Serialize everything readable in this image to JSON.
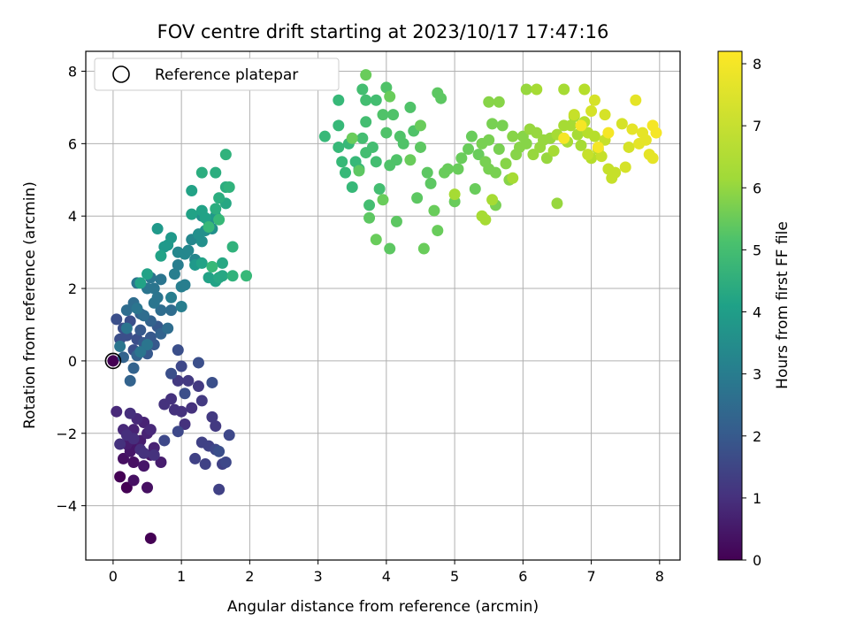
{
  "chart_data": {
    "type": "scatter",
    "title": "FOV centre drift starting at 2023/10/17 17:47:16",
    "xlabel": "Angular distance from reference (arcmin)",
    "ylabel": "Rotation from reference (arcmin)",
    "xlim": [
      -0.4,
      8.3
    ],
    "ylim": [
      -5.5,
      8.55
    ],
    "xticks": [
      "0",
      "1",
      "2",
      "3",
      "4",
      "5",
      "6",
      "7",
      "8"
    ],
    "yticks": [
      "−4",
      "−2",
      "0",
      "2",
      "4",
      "6",
      "8"
    ],
    "grid": true,
    "legend": {
      "label": "Reference platepar",
      "location": "top-left"
    },
    "reference_point": {
      "x": 0,
      "y": 0
    },
    "colorbar": {
      "label": "Hours from first FF file",
      "colormap": "viridis",
      "range": [
        0,
        8.2
      ],
      "ticks": [
        "0",
        "1",
        "2",
        "3",
        "4",
        "5",
        "6",
        "7",
        "8"
      ]
    },
    "series": [
      {
        "c": [
          0,
          0.35,
          0.5,
          0.65,
          0.8,
          0.95,
          1.1,
          1.2
        ],
        "points": [
          [
            0,
            0
          ],
          [
            0.55,
            -4.9
          ],
          [
            0.1,
            -3.2
          ],
          [
            0.2,
            -3.5
          ],
          [
            0.3,
            -3.3
          ],
          [
            0.5,
            -3.5
          ],
          [
            0.15,
            -2.7
          ],
          [
            0.3,
            -2.8
          ],
          [
            0.45,
            -2.9
          ],
          [
            0.25,
            -2.5
          ],
          [
            0.35,
            -2.3
          ],
          [
            0.55,
            -2.6
          ],
          [
            0.7,
            -2.8
          ],
          [
            0.2,
            -2.3
          ],
          [
            0.4,
            -2.2
          ],
          [
            0.6,
            -2.4
          ],
          [
            0.5,
            -2.0
          ],
          [
            0.3,
            -1.9
          ],
          [
            0.45,
            -1.7
          ],
          [
            0.15,
            -1.9
          ],
          [
            0.35,
            -1.6
          ],
          [
            0.55,
            -1.9
          ],
          [
            0.05,
            -1.4
          ],
          [
            0.25,
            -1.45
          ],
          [
            0.4,
            -2.45
          ],
          [
            0.3,
            -2.15
          ],
          [
            0.2,
            -2.05
          ],
          [
            0.6,
            -2.6
          ],
          [
            0.1,
            -2.3
          ],
          [
            0.45,
            -2.55
          ]
        ]
      },
      {
        "c": [
          1.2,
          1.4,
          1.6,
          1.8,
          2.0
        ],
        "points": [
          [
            0.75,
            -1.2
          ],
          [
            0.9,
            -1.35
          ],
          [
            1.0,
            -1.4
          ],
          [
            1.05,
            -1.75
          ],
          [
            1.15,
            -1.3
          ],
          [
            0.85,
            -1.05
          ],
          [
            0.95,
            -0.55
          ],
          [
            1.1,
            -0.55
          ],
          [
            1.25,
            -0.7
          ],
          [
            1.3,
            -1.1
          ],
          [
            1.45,
            -1.55
          ],
          [
            1.5,
            -1.8
          ],
          [
            1.2,
            -2.7
          ],
          [
            1.3,
            -2.25
          ],
          [
            1.4,
            -2.35
          ],
          [
            1.35,
            -2.85
          ],
          [
            1.55,
            -3.55
          ],
          [
            1.6,
            -2.85
          ],
          [
            1.65,
            -2.8
          ],
          [
            1.7,
            -2.05
          ],
          [
            1.5,
            -2.45
          ],
          [
            0.95,
            -1.95
          ],
          [
            0.75,
            -2.2
          ],
          [
            1.0,
            -0.15
          ],
          [
            1.25,
            -0.05
          ],
          [
            0.85,
            -0.35
          ],
          [
            0.95,
            0.3
          ],
          [
            1.45,
            -0.6
          ],
          [
            1.55,
            -2.5
          ],
          [
            1.05,
            -0.9
          ]
        ]
      },
      {
        "c": [
          2.0,
          2.3,
          2.6,
          2.9,
          3.2
        ],
        "points": [
          [
            0.05,
            1.15
          ],
          [
            0.1,
            0.6
          ],
          [
            0.15,
            0.9
          ],
          [
            0.2,
            0.7
          ],
          [
            0.25,
            1.1
          ],
          [
            0.3,
            0.3
          ],
          [
            0.35,
            0.6
          ],
          [
            0.4,
            0.85
          ],
          [
            0.45,
            0.5
          ],
          [
            0.5,
            0.2
          ],
          [
            0.55,
            0.65
          ],
          [
            0.6,
            0.45
          ],
          [
            0.65,
            0.95
          ],
          [
            0.7,
            0.75
          ],
          [
            0.3,
            -0.2
          ],
          [
            0.25,
            -0.55
          ],
          [
            0.35,
            0.15
          ],
          [
            0.15,
            0.1
          ],
          [
            0.4,
            1.3
          ],
          [
            0.55,
            1.1
          ],
          [
            0.2,
            1.4
          ],
          [
            0.3,
            1.6
          ],
          [
            0.45,
            1.25
          ],
          [
            0.8,
            0.9
          ],
          [
            0.85,
            1.4
          ],
          [
            0.7,
            1.4
          ],
          [
            0.5,
            0.45
          ],
          [
            0.2,
            0.9
          ],
          [
            0.35,
            1.45
          ],
          [
            0.6,
            1.6
          ],
          [
            0.1,
            0.4
          ],
          [
            0.4,
            0.25
          ]
        ]
      },
      {
        "c": [
          3.2,
          3.5,
          3.8,
          4.1,
          4.4,
          4.7
        ],
        "points": [
          [
            0.35,
            2.15
          ],
          [
            0.5,
            2.0
          ],
          [
            0.55,
            2.3
          ],
          [
            0.6,
            2.0
          ],
          [
            0.65,
            1.75
          ],
          [
            0.7,
            2.25
          ],
          [
            0.85,
            1.75
          ],
          [
            0.9,
            2.4
          ],
          [
            0.95,
            2.65
          ],
          [
            1.0,
            1.5
          ],
          [
            1.0,
            2.05
          ],
          [
            1.05,
            2.1
          ],
          [
            0.95,
            3.0
          ],
          [
            1.05,
            2.95
          ],
          [
            1.1,
            3.05
          ],
          [
            1.15,
            3.35
          ],
          [
            1.2,
            2.8
          ],
          [
            1.25,
            3.5
          ],
          [
            1.3,
            3.3
          ],
          [
            1.3,
            4.0
          ],
          [
            1.35,
            3.6
          ],
          [
            1.4,
            3.85
          ],
          [
            1.45,
            3.65
          ],
          [
            1.5,
            4.0
          ],
          [
            1.2,
            2.65
          ],
          [
            0.75,
            3.15
          ],
          [
            0.8,
            3.2
          ],
          [
            0.65,
            3.65
          ],
          [
            0.85,
            3.4
          ],
          [
            1.15,
            4.05
          ],
          [
            0.7,
            2.9
          ],
          [
            1.3,
            2.7
          ],
          [
            0.5,
            2.4
          ],
          [
            0.4,
            2.15
          ]
        ]
      },
      {
        "c": [
          4.7,
          4.9,
          5.1,
          5.3,
          5.5
        ],
        "points": [
          [
            1.15,
            4.7
          ],
          [
            1.3,
            4.15
          ],
          [
            1.35,
            3.95
          ],
          [
            1.4,
            2.3
          ],
          [
            1.5,
            2.2
          ],
          [
            1.55,
            2.3
          ],
          [
            1.6,
            2.7
          ],
          [
            1.6,
            2.35
          ],
          [
            1.65,
            4.35
          ],
          [
            1.55,
            4.5
          ],
          [
            1.5,
            4.2
          ],
          [
            1.3,
            5.2
          ],
          [
            1.5,
            5.2
          ],
          [
            1.65,
            4.8
          ],
          [
            1.7,
            4.8
          ],
          [
            1.65,
            5.7
          ],
          [
            1.75,
            3.15
          ],
          [
            1.75,
            2.35
          ],
          [
            1.95,
            2.35
          ],
          [
            1.55,
            3.9
          ],
          [
            1.45,
            2.6
          ],
          [
            1.4,
            3.7
          ]
        ]
      },
      {
        "c": [
          5.5,
          5.7,
          5.9,
          6.1,
          6.3
        ],
        "points": [
          [
            3.1,
            6.2
          ],
          [
            3.3,
            7.2
          ],
          [
            3.3,
            6.5
          ],
          [
            3.3,
            5.9
          ],
          [
            3.35,
            5.5
          ],
          [
            3.4,
            5.2
          ],
          [
            3.45,
            6.0
          ],
          [
            3.5,
            4.8
          ],
          [
            3.55,
            5.5
          ],
          [
            3.6,
            5.3
          ],
          [
            3.65,
            6.15
          ],
          [
            3.65,
            7.5
          ],
          [
            3.7,
            7.2
          ],
          [
            3.7,
            6.6
          ],
          [
            3.7,
            5.75
          ],
          [
            3.75,
            4.3
          ],
          [
            3.8,
            5.9
          ],
          [
            3.85,
            5.5
          ],
          [
            3.85,
            7.2
          ],
          [
            3.9,
            4.75
          ],
          [
            3.95,
            6.8
          ],
          [
            4.0,
            7.55
          ],
          [
            4.0,
            6.3
          ],
          [
            4.05,
            5.4
          ],
          [
            4.1,
            6.8
          ],
          [
            4.15,
            5.55
          ],
          [
            4.2,
            6.2
          ],
          [
            4.25,
            6.0
          ],
          [
            4.35,
            7.0
          ],
          [
            4.4,
            6.35
          ],
          [
            4.45,
            4.5
          ],
          [
            4.5,
            5.9
          ],
          [
            4.6,
            5.2
          ],
          [
            4.65,
            4.9
          ],
          [
            4.75,
            7.4
          ],
          [
            4.8,
            7.25
          ],
          [
            3.6,
            5.25
          ],
          [
            3.75,
            3.95
          ],
          [
            4.05,
            3.1
          ],
          [
            4.15,
            3.85
          ],
          [
            4.55,
            3.1
          ],
          [
            4.7,
            4.15
          ],
          [
            4.75,
            3.6
          ],
          [
            3.5,
            6.15
          ],
          [
            3.85,
            3.35
          ],
          [
            4.5,
            6.5
          ],
          [
            4.35,
            5.55
          ],
          [
            4.05,
            7.3
          ],
          [
            3.95,
            4.45
          ],
          [
            3.7,
            7.9
          ]
        ]
      },
      {
        "c": [
          6.3,
          6.5,
          6.7,
          6.9,
          7.1
        ],
        "points": [
          [
            4.85,
            5.2
          ],
          [
            4.9,
            5.3
          ],
          [
            5.0,
            4.4
          ],
          [
            5.05,
            5.3
          ],
          [
            5.1,
            5.6
          ],
          [
            5.2,
            5.85
          ],
          [
            5.25,
            6.2
          ],
          [
            5.3,
            4.75
          ],
          [
            5.35,
            5.7
          ],
          [
            5.4,
            6.0
          ],
          [
            5.45,
            5.5
          ],
          [
            5.5,
            6.1
          ],
          [
            5.5,
            5.3
          ],
          [
            5.55,
            6.55
          ],
          [
            5.6,
            5.2
          ],
          [
            5.6,
            4.3
          ],
          [
            5.65,
            5.85
          ],
          [
            5.7,
            6.5
          ],
          [
            5.75,
            5.45
          ],
          [
            5.5,
            7.15
          ],
          [
            5.65,
            7.15
          ],
          [
            5.8,
            5.0
          ],
          [
            5.85,
            6.2
          ],
          [
            5.9,
            5.7
          ],
          [
            5.95,
            5.9
          ],
          [
            6.0,
            6.2
          ],
          [
            6.05,
            6.0
          ],
          [
            6.1,
            6.4
          ],
          [
            6.15,
            5.7
          ],
          [
            6.2,
            6.3
          ],
          [
            6.25,
            5.9
          ],
          [
            6.3,
            6.1
          ],
          [
            6.35,
            5.6
          ],
          [
            6.4,
            6.15
          ],
          [
            6.5,
            4.35
          ],
          [
            6.05,
            7.5
          ],
          [
            6.2,
            7.5
          ],
          [
            5.4,
            4.0
          ],
          [
            5.45,
            3.9
          ],
          [
            5.55,
            4.45
          ],
          [
            5.0,
            4.6
          ],
          [
            6.6,
            7.5
          ],
          [
            6.45,
            5.8
          ],
          [
            5.85,
            5.05
          ]
        ]
      },
      {
        "c": [
          7.1,
          7.3,
          7.5,
          7.7,
          7.9,
          8.1
        ],
        "points": [
          [
            6.5,
            6.25
          ],
          [
            6.6,
            6.5
          ],
          [
            6.65,
            6.05
          ],
          [
            6.7,
            6.5
          ],
          [
            6.75,
            6.75
          ],
          [
            6.8,
            6.25
          ],
          [
            6.85,
            5.95
          ],
          [
            6.9,
            7.5
          ],
          [
            6.9,
            6.6
          ],
          [
            6.95,
            6.3
          ],
          [
            7.0,
            5.6
          ],
          [
            7.05,
            6.2
          ],
          [
            7.1,
            5.85
          ],
          [
            7.15,
            5.65
          ],
          [
            7.2,
            6.1
          ],
          [
            7.25,
            5.3
          ],
          [
            7.3,
            5.05
          ],
          [
            7.35,
            5.2
          ],
          [
            6.95,
            5.7
          ],
          [
            6.75,
            6.8
          ],
          [
            7.0,
            6.9
          ],
          [
            7.05,
            7.2
          ],
          [
            7.2,
            6.8
          ],
          [
            7.45,
            6.55
          ],
          [
            7.5,
            5.35
          ],
          [
            7.55,
            5.9
          ],
          [
            7.6,
            6.4
          ],
          [
            7.65,
            7.2
          ],
          [
            7.7,
            6.0
          ],
          [
            7.75,
            6.3
          ],
          [
            7.8,
            6.1
          ],
          [
            7.85,
            5.7
          ],
          [
            7.9,
            5.6
          ],
          [
            7.95,
            6.3
          ],
          [
            7.9,
            6.5
          ],
          [
            7.25,
            6.3
          ],
          [
            6.85,
            6.5
          ],
          [
            7.1,
            5.9
          ],
          [
            6.6,
            6.15
          ]
        ]
      }
    ]
  }
}
